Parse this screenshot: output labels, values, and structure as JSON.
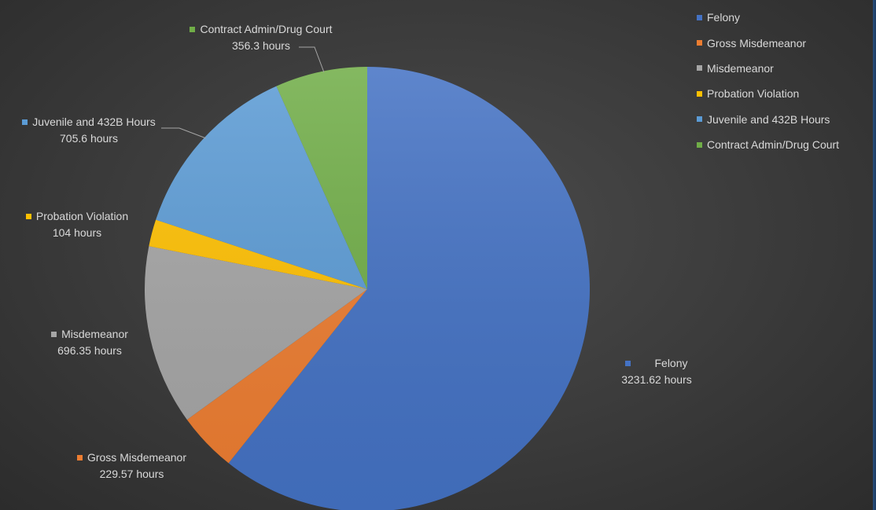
{
  "chart_data": {
    "type": "pie",
    "slices": [
      {
        "name": "Felony",
        "value": 3231.62,
        "value_label": "3231.62 hours",
        "color": "#4472c4"
      },
      {
        "name": "Gross Misdemeanor",
        "value": 229.57,
        "value_label": "229.57 hours",
        "color": "#ed7d31"
      },
      {
        "name": "Misdemeanor",
        "value": 696.35,
        "value_label": "696.35 hours",
        "color": "#a5a5a5"
      },
      {
        "name": "Probation Violation",
        "value": 104,
        "value_label": "104 hours",
        "color": "#ffc000"
      },
      {
        "name": "Juvenile and 432B Hours",
        "value": 705.6,
        "value_label": "705.6 hours",
        "color": "#5b9bd5"
      },
      {
        "name": "Contract Admin/Drug Court",
        "value": 356.3,
        "value_label": "356.3 hours",
        "color": "#70ad47"
      }
    ],
    "legend_position": "top-right",
    "start_angle": "top, clockwise"
  }
}
